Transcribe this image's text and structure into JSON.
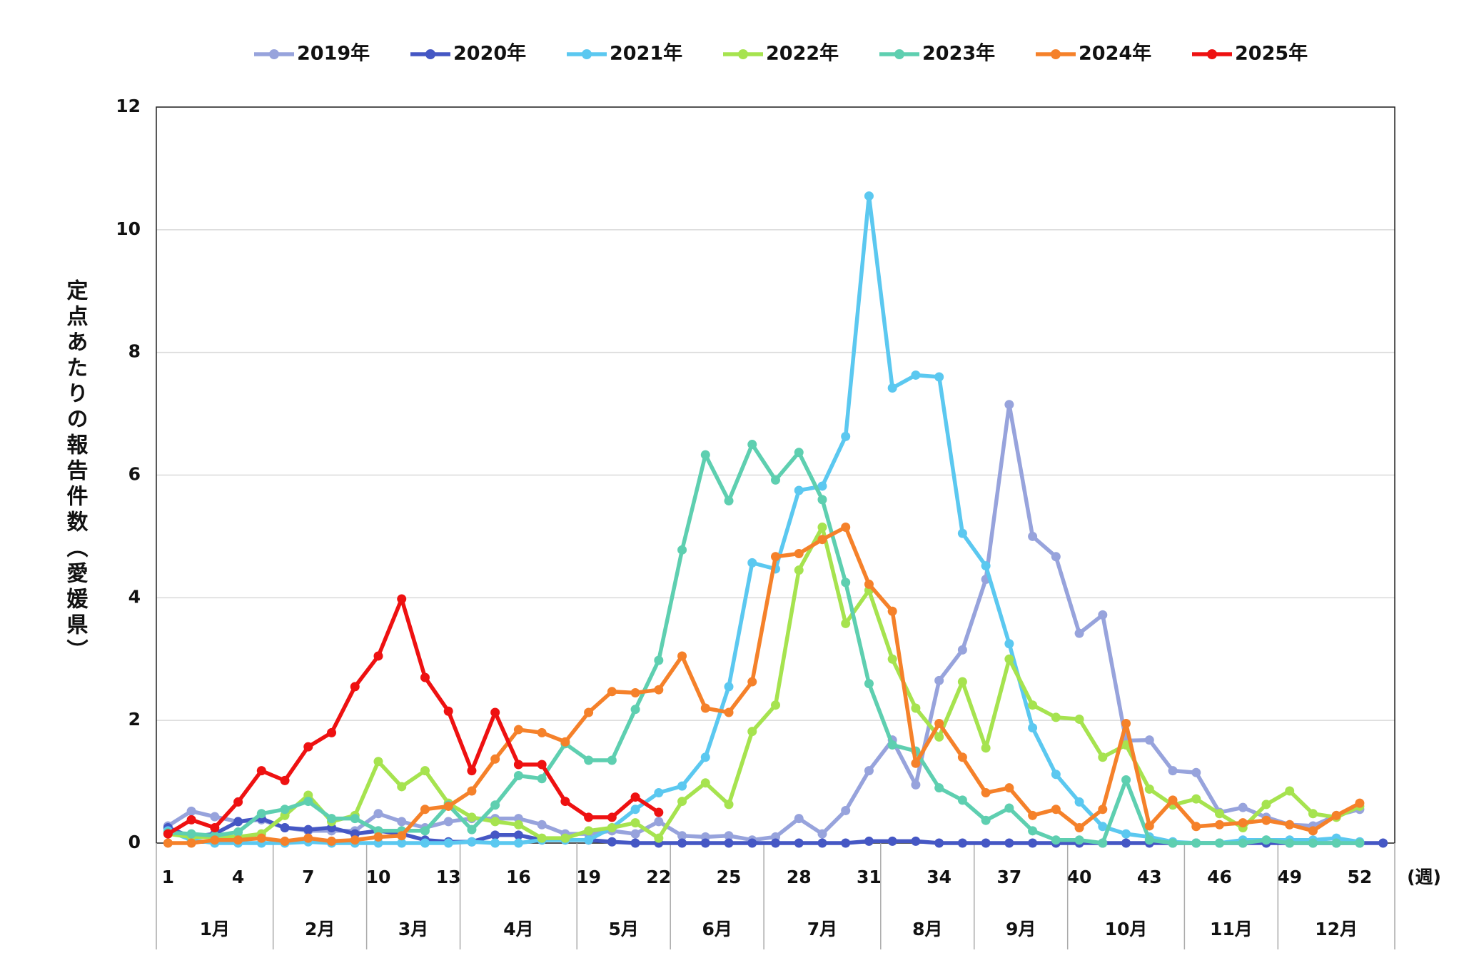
{
  "chart_data": {
    "type": "line",
    "y_label": "定点あたりの報告件数（愛媛県）",
    "x_unit": "(週)",
    "categories": [
      1,
      null,
      null,
      4,
      null,
      null,
      7,
      null,
      null,
      10,
      null,
      null,
      13,
      null,
      null,
      16,
      null,
      null,
      19,
      null,
      null,
      22,
      null,
      null,
      25,
      null,
      null,
      28,
      null,
      null,
      31,
      null,
      null,
      34,
      null,
      null,
      37,
      null,
      null,
      40,
      null,
      null,
      43,
      null,
      null,
      46,
      null,
      null,
      49,
      null,
      null,
      52,
      null
    ],
    "months": [
      "1月",
      "2月",
      "3月",
      "4月",
      "5月",
      "6月",
      "7月",
      "8月",
      "9月",
      "10月",
      "11月",
      "12月"
    ],
    "ylim": [
      0,
      12
    ],
    "yticks": [
      0,
      2,
      4,
      6,
      8,
      10,
      12
    ],
    "grid": true,
    "legend": "top",
    "series": [
      {
        "name": "2019年",
        "color": "#97a3dc",
        "values": [
          0.28,
          0.52,
          0.43,
          0.35,
          0.38,
          0.25,
          0.2,
          0.2,
          0.2,
          0.48,
          0.35,
          0.25,
          0.35,
          0.4,
          0.4,
          0.4,
          0.3,
          0.15,
          0.15,
          0.2,
          0.15,
          0.35,
          0.12,
          0.1,
          0.12,
          0.05,
          0.1,
          0.4,
          0.15,
          0.53,
          1.18,
          1.68,
          0.95,
          2.65,
          3.15,
          4.3,
          7.15,
          5.0,
          4.67,
          3.42,
          3.72,
          1.67,
          1.68,
          1.18,
          1.15,
          0.5,
          0.58,
          0.42,
          0.3,
          0.28,
          0.45,
          0.55,
          null
        ]
      },
      {
        "name": "2020年",
        "color": "#4557c4",
        "values": [
          0.25,
          0.1,
          0.15,
          0.35,
          0.4,
          0.25,
          0.22,
          0.25,
          0.15,
          0.2,
          0.15,
          0.05,
          0.02,
          0.02,
          0.13,
          0.13,
          0.05,
          0.05,
          0.05,
          0.02,
          0,
          0,
          0,
          0,
          0,
          0,
          0,
          0,
          0,
          0,
          0.03,
          0.03,
          0.03,
          0,
          0,
          0,
          0,
          0,
          0,
          0,
          0,
          0,
          0,
          0,
          0,
          0,
          0,
          0,
          0,
          0,
          0,
          0,
          0
        ]
      },
      {
        "name": "2021年",
        "color": "#5bc8f0",
        "values": [
          0.2,
          0.05,
          0,
          0,
          0,
          0,
          0.02,
          0,
          0,
          0,
          0,
          0,
          0,
          0.02,
          0,
          0,
          0.05,
          0.05,
          0.05,
          0.25,
          0.55,
          0.82,
          0.93,
          1.4,
          2.55,
          4.57,
          4.47,
          5.75,
          5.82,
          6.63,
          10.55,
          7.42,
          7.63,
          7.6,
          5.05,
          4.52,
          3.25,
          1.88,
          1.12,
          0.67,
          0.27,
          0.15,
          0.1,
          0.02,
          0,
          0,
          0.05,
          0.05,
          0.05,
          0.05,
          0.08,
          0.02,
          null
        ]
      },
      {
        "name": "2022年",
        "color": "#a6e34f",
        "values": [
          0.15,
          0.1,
          0.1,
          0.1,
          0.15,
          0.45,
          0.78,
          0.35,
          0.45,
          1.33,
          0.92,
          1.18,
          0.65,
          0.42,
          0.35,
          0.3,
          0.08,
          0.08,
          0.2,
          0.25,
          0.33,
          0.08,
          0.68,
          0.98,
          0.63,
          1.82,
          2.25,
          4.45,
          5.15,
          3.58,
          4.12,
          3.0,
          2.2,
          1.73,
          2.63,
          1.55,
          3.0,
          2.25,
          2.05,
          2.02,
          1.4,
          1.6,
          0.88,
          0.62,
          0.72,
          0.48,
          0.25,
          0.63,
          0.85,
          0.48,
          0.42,
          0.6,
          null
        ]
      },
      {
        "name": "2023年",
        "color": "#5ecfb0",
        "values": [
          0.17,
          0.15,
          0.12,
          0.18,
          0.48,
          0.55,
          0.68,
          0.4,
          0.4,
          0.2,
          0.2,
          0.2,
          0.62,
          0.22,
          0.62,
          1.1,
          1.05,
          1.62,
          1.35,
          1.35,
          2.18,
          2.98,
          4.78,
          6.33,
          5.58,
          6.5,
          5.92,
          6.37,
          5.6,
          4.25,
          2.6,
          1.6,
          1.5,
          0.9,
          0.7,
          0.37,
          0.57,
          0.2,
          0.05,
          0.05,
          0,
          1.03,
          0.05,
          0,
          0,
          0,
          0,
          0.05,
          0,
          0,
          0,
          0,
          null
        ]
      },
      {
        "name": "2024年",
        "color": "#f5812a",
        "values": [
          0,
          0,
          0.05,
          0.05,
          0.08,
          0.03,
          0.08,
          0.03,
          0.05,
          0.1,
          0.12,
          0.55,
          0.6,
          0.85,
          1.37,
          1.85,
          1.8,
          1.65,
          2.13,
          2.47,
          2.45,
          2.5,
          3.05,
          2.2,
          2.13,
          2.63,
          4.67,
          4.72,
          4.95,
          5.15,
          4.22,
          3.78,
          1.3,
          1.95,
          1.4,
          0.82,
          0.9,
          0.45,
          0.55,
          0.25,
          0.55,
          1.95,
          0.28,
          0.7,
          0.27,
          0.3,
          0.33,
          0.37,
          0.3,
          0.2,
          0.45,
          0.65,
          null
        ]
      },
      {
        "name": "2025年",
        "color": "#ee1111",
        "values": [
          0.15,
          0.38,
          0.25,
          0.67,
          1.18,
          1.02,
          1.57,
          1.8,
          2.55,
          3.05,
          3.98,
          2.7,
          2.15,
          1.18,
          2.13,
          1.28,
          1.28,
          0.68,
          0.42,
          0.42,
          0.75,
          0.5,
          null,
          null,
          null,
          null,
          null,
          null,
          null,
          null,
          null,
          null,
          null,
          null,
          null,
          null,
          null,
          null,
          null,
          null,
          null,
          null,
          null,
          null,
          null,
          null,
          null,
          null,
          null,
          null,
          null,
          null,
          null
        ]
      }
    ]
  }
}
